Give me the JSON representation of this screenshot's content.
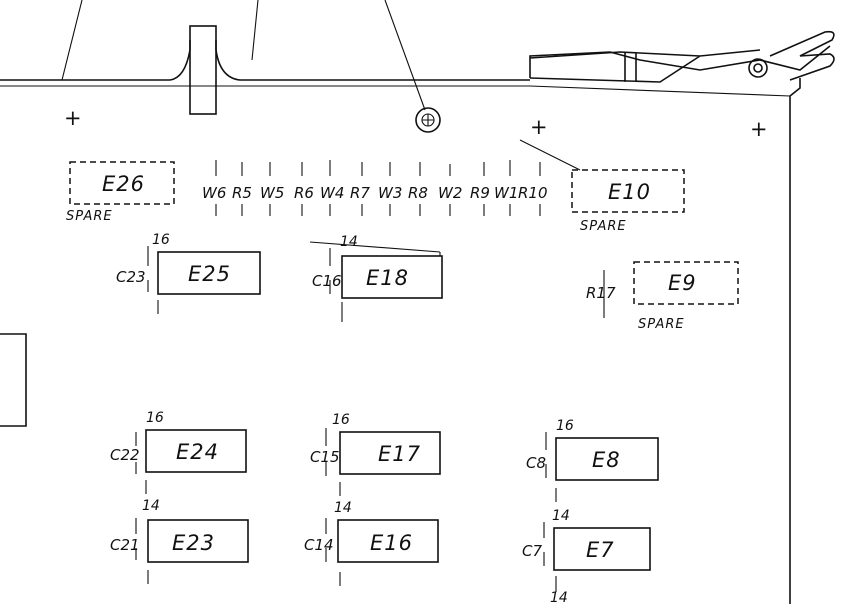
{
  "spare_chips": [
    {
      "id": "E26",
      "note": "SPARE"
    },
    {
      "id": "E10",
      "note": "SPARE"
    },
    {
      "id": "E9",
      "note": "SPARE"
    }
  ],
  "resistor_array": [
    "W6",
    "R5",
    "W5",
    "R6",
    "W4",
    "R7",
    "W3",
    "R8",
    "W2",
    "R9",
    "W1",
    "R10"
  ],
  "resistor_single": "R17",
  "chips": [
    {
      "id": "E25",
      "cap": "C23",
      "pins": "16"
    },
    {
      "id": "E18",
      "cap": "C16",
      "pins": "14"
    },
    {
      "id": "E24",
      "cap": "C22",
      "pins": "16"
    },
    {
      "id": "E17",
      "cap": "C15",
      "pins": "16"
    },
    {
      "id": "E8",
      "cap": "C8",
      "pins": "16"
    },
    {
      "id": "E23",
      "cap": "C21",
      "pins": "14"
    },
    {
      "id": "E16",
      "cap": "C14",
      "pins": "14"
    },
    {
      "id": "E7",
      "cap": "C7",
      "pins": "14"
    }
  ],
  "bottom_pin_label": "14",
  "mount_marks": [
    "+",
    "+",
    "+"
  ]
}
